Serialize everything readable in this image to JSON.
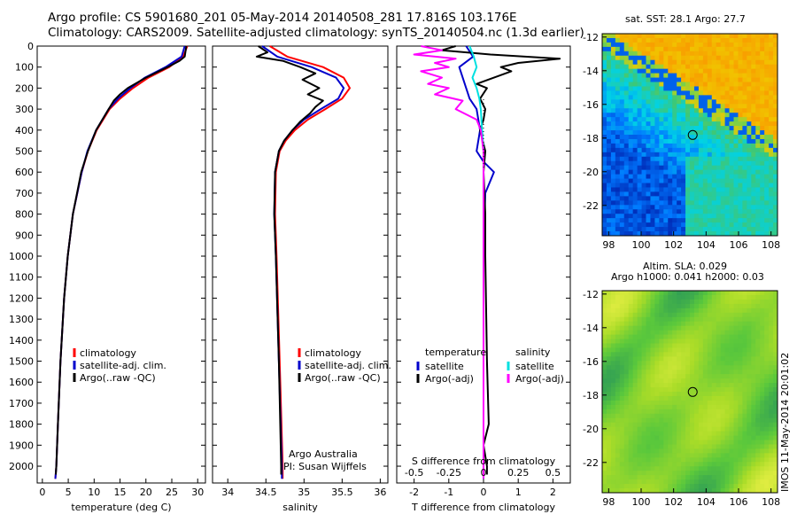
{
  "header": {
    "line1": "Argo profile: CS 5901680_201 05-May-2014 20140508_281 17.816S 103.176E",
    "line2": "Climatology: CARS2009. Satellite-adjusted climatology: synTS_20140504.nc (1.3d earlier)"
  },
  "side_label": "IMOS 11-May-2014 20:01:02",
  "colors": {
    "climatology": "#ff0000",
    "satellite": "#0000cc",
    "argo": "#000000",
    "satellite_s": "#00e0e0",
    "argo_s": "#ff00ff"
  },
  "chart_data": [
    {
      "type": "line",
      "xlabel": "temperature (deg C)",
      "ylabel": "",
      "xlim": [
        -1,
        31.5
      ],
      "ylim": [
        2080,
        0
      ],
      "xticks": [
        0,
        5,
        10,
        15,
        20,
        25,
        30
      ],
      "yticks": [
        0,
        100,
        200,
        300,
        400,
        500,
        600,
        700,
        800,
        900,
        1000,
        1100,
        1200,
        1300,
        1400,
        1500,
        1600,
        1700,
        1800,
        1900,
        2000
      ],
      "legend": [
        "climatology",
        "satellite-adj. clim.",
        "Argo(..raw -QC)"
      ],
      "series": [
        {
          "name": "climatology",
          "color": "#ff0000",
          "depth": [
            0,
            50,
            100,
            150,
            200,
            250,
            300,
            400,
            500,
            600,
            800,
            1000,
            1200,
            1500,
            1800,
            2000,
            2060
          ],
          "values": [
            28.0,
            27.2,
            24.5,
            20.5,
            17.5,
            15.0,
            13.0,
            10.5,
            8.8,
            7.6,
            5.9,
            4.9,
            4.2,
            3.5,
            3.0,
            2.7,
            2.5
          ]
        },
        {
          "name": "satellite-adj. clim.",
          "color": "#0000cc",
          "depth": [
            0,
            50,
            100,
            150,
            200,
            250,
            300,
            400,
            500,
            600,
            800,
            1000,
            1200,
            1500,
            1800,
            2000,
            2060
          ],
          "values": [
            27.5,
            26.9,
            23.8,
            19.8,
            17.0,
            14.6,
            12.8,
            10.4,
            8.7,
            7.6,
            5.9,
            4.9,
            4.2,
            3.5,
            3.0,
            2.7,
            2.5
          ]
        },
        {
          "name": "Argo(..raw -QC)",
          "color": "#000000",
          "depth": [
            0,
            50,
            70,
            100,
            150,
            200,
            230,
            260,
            300,
            400,
            500,
            600,
            800,
            1000,
            1200,
            1500,
            1800,
            2000,
            2040
          ],
          "values": [
            27.8,
            27.5,
            26.5,
            24.2,
            20.0,
            16.5,
            15.0,
            13.8,
            12.8,
            10.4,
            8.8,
            7.5,
            5.9,
            4.9,
            4.2,
            3.5,
            3.0,
            2.7,
            2.6
          ]
        }
      ]
    },
    {
      "type": "line",
      "xlabel": "salinity",
      "ylabel": "",
      "xlim": [
        33.8,
        36.1
      ],
      "ylim": [
        2080,
        0
      ],
      "xticks": [
        34,
        34.5,
        35,
        35.5,
        36
      ],
      "legend": [
        "climatology",
        "satellite-adj. clim.",
        "Argo(..raw -QC)"
      ],
      "annotations": [
        "Argo Australia",
        "PI: Susan Wijffels"
      ],
      "series": [
        {
          "name": "climatology",
          "color": "#ff0000",
          "depth": [
            0,
            50,
            100,
            150,
            200,
            250,
            300,
            350,
            400,
            450,
            500,
            600,
            800,
            1000,
            1500,
            2000,
            2060
          ],
          "values": [
            34.55,
            34.78,
            35.25,
            35.52,
            35.6,
            35.5,
            35.28,
            35.05,
            34.88,
            34.76,
            34.68,
            34.63,
            34.62,
            34.64,
            34.68,
            34.72,
            34.72
          ]
        },
        {
          "name": "satellite-adj. clim.",
          "color": "#0000cc",
          "depth": [
            0,
            50,
            100,
            150,
            200,
            250,
            300,
            350,
            400,
            450,
            500,
            600,
            800,
            1000,
            1500,
            2000,
            2060
          ],
          "values": [
            34.45,
            34.65,
            35.1,
            35.42,
            35.52,
            35.45,
            35.22,
            35.0,
            34.85,
            34.74,
            34.67,
            34.62,
            34.61,
            34.63,
            34.67,
            34.71,
            34.71
          ]
        },
        {
          "name": "Argo(..raw -QC)",
          "color": "#000000",
          "depth": [
            0,
            30,
            50,
            70,
            100,
            130,
            160,
            200,
            230,
            260,
            290,
            320,
            360,
            400,
            450,
            500,
            600,
            800,
            1000,
            1500,
            2000,
            2040
          ],
          "values": [
            34.4,
            34.52,
            34.38,
            34.72,
            34.95,
            35.15,
            34.98,
            35.2,
            35.05,
            35.25,
            35.15,
            35.08,
            34.95,
            34.85,
            34.74,
            34.67,
            34.62,
            34.61,
            34.63,
            34.67,
            34.7,
            34.7
          ]
        }
      ]
    },
    {
      "type": "line",
      "xlabel": "T difference from climatology",
      "xlabel_top": "S difference from climatology",
      "xlim": [
        -2.5,
        2.5
      ],
      "ylim": [
        2080,
        0
      ],
      "xticks": [
        -2,
        -1,
        0,
        1,
        2
      ],
      "xticks_s": [
        -0.5,
        -0.25,
        0,
        0.25,
        0.5
      ],
      "s_per_t": 0.25,
      "legend": {
        "temperature": "temperature",
        "salinity": "salinity",
        "t_items": [
          "satellite",
          "Argo(-adj)"
        ],
        "s_items": [
          "satellite",
          "Argo(-adj)"
        ]
      },
      "series": [
        {
          "name": "T satellite",
          "color": "#0000cc",
          "depth": [
            0,
            50,
            100,
            150,
            200,
            250,
            300,
            400,
            500,
            550,
            600,
            700,
            1000,
            1500,
            2000,
            2060
          ],
          "values": [
            -0.5,
            -0.3,
            -0.7,
            -0.6,
            -0.5,
            -0.4,
            -0.2,
            -0.1,
            -0.2,
            0.0,
            0.3,
            0.05,
            0.0,
            0.0,
            0.0,
            0.0
          ]
        },
        {
          "name": "T Argo(-adj)",
          "color": "#000000",
          "depth": [
            0,
            20,
            40,
            60,
            80,
            100,
            120,
            150,
            180,
            200,
            250,
            300,
            350,
            400,
            500,
            600,
            800,
            1000,
            1500,
            1800,
            1900,
            2000,
            2040
          ],
          "values": [
            -0.8,
            -1.2,
            0.2,
            2.2,
            1.0,
            0.5,
            0.8,
            0.3,
            -0.2,
            0.1,
            -0.1,
            0.05,
            0.0,
            -0.1,
            0.05,
            0.0,
            0.05,
            0.05,
            0.1,
            0.15,
            0.0,
            0.1,
            0.1
          ]
        },
        {
          "name": "S satellite",
          "color": "#00e0e0",
          "depth": [
            0,
            50,
            100,
            150,
            200,
            250,
            300,
            400,
            500,
            600,
            800,
            1000,
            1500,
            2000,
            2060
          ],
          "values": [
            -0.1,
            -0.07,
            -0.05,
            -0.08,
            -0.05,
            -0.03,
            -0.02,
            -0.01,
            0.0,
            0.0,
            0.0,
            0.0,
            0.0,
            0.0,
            0.0
          ]
        },
        {
          "name": "S Argo(-adj)",
          "color": "#ff00ff",
          "depth": [
            0,
            20,
            40,
            60,
            80,
            100,
            120,
            150,
            180,
            200,
            230,
            260,
            300,
            350,
            400,
            500,
            600,
            1000,
            2000,
            2060
          ],
          "values": [
            -0.45,
            -0.3,
            -0.5,
            -0.2,
            -0.35,
            -0.25,
            -0.45,
            -0.3,
            -0.4,
            -0.25,
            -0.35,
            -0.15,
            -0.2,
            -0.05,
            -0.02,
            0.0,
            0.0,
            0.0,
            0.0,
            0.0
          ]
        }
      ]
    },
    {
      "type": "heatmap",
      "title": "sat. SST: 28.1 Argo: 27.7",
      "xlim": [
        97.6,
        108.4
      ],
      "ylim": [
        -23.8,
        -11.8
      ],
      "xticks": [
        98,
        100,
        102,
        104,
        106,
        108
      ],
      "yticks": [
        -12,
        -14,
        -16,
        -18,
        -20,
        -22
      ],
      "marker": {
        "lon": 103.176,
        "lat": -17.816
      }
    },
    {
      "type": "heatmap",
      "title": "Altim. SLA: 0.029",
      "subtitle": "Argo h1000: 0.041 h2000: 0.03",
      "xlim": [
        97.6,
        108.4
      ],
      "ylim": [
        -23.8,
        -11.8
      ],
      "xticks": [
        98,
        100,
        102,
        104,
        106,
        108
      ],
      "yticks": [
        -12,
        -14,
        -16,
        -18,
        -20,
        -22
      ],
      "marker": {
        "lon": 103.176,
        "lat": -17.816
      }
    }
  ]
}
